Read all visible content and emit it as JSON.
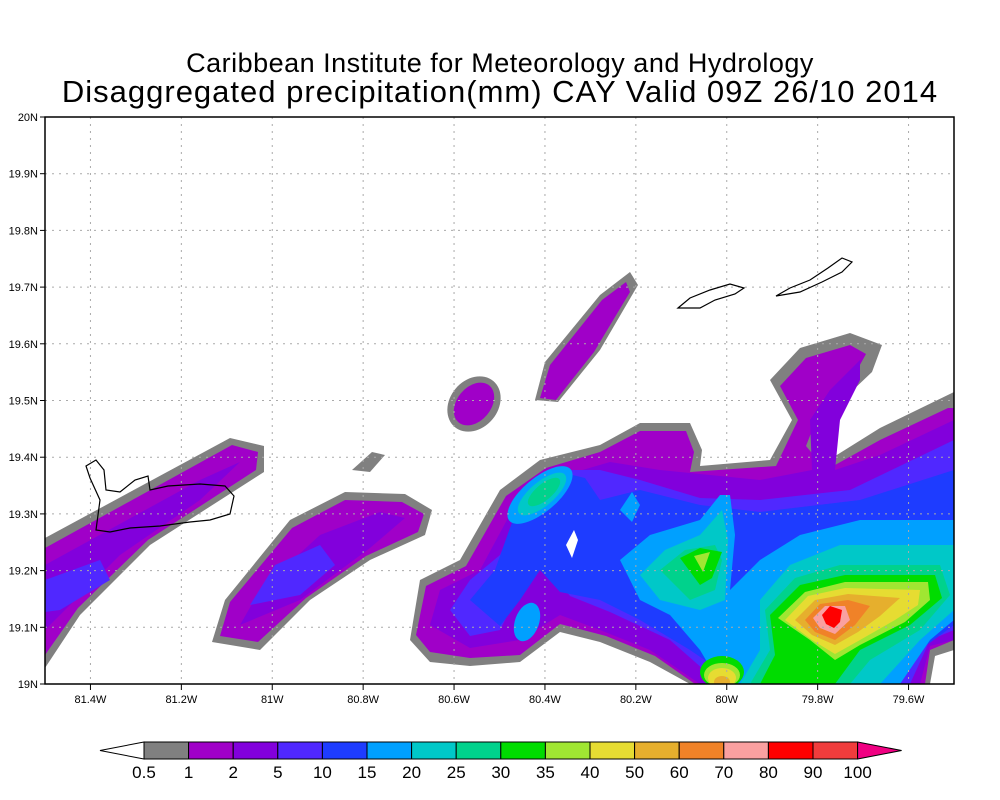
{
  "title": {
    "line1": "Caribbean Institute for Meteorology and Hydrology",
    "line2": "Disaggregated precipitation(mm) CAY Valid 09Z 26/10 2014"
  },
  "chart_data": {
    "type": "heatmap",
    "title": "Disaggregated precipitation(mm) CAY Valid 09Z 26/10 2014",
    "xlabel": "",
    "ylabel": "",
    "xlim": [
      -81.5,
      -79.5
    ],
    "ylim": [
      19.0,
      20.0
    ],
    "x_ticks": [
      "81.4W",
      "81.2W",
      "81W",
      "80.8W",
      "80.6W",
      "80.4W",
      "80.2W",
      "80W",
      "79.8W",
      "79.6W"
    ],
    "x_tick_values": [
      -81.4,
      -81.2,
      -81.0,
      -80.8,
      -80.6,
      -80.4,
      -80.2,
      -80.0,
      -79.8,
      -79.6
    ],
    "y_ticks": [
      "19N",
      "19.1N",
      "19.2N",
      "19.3N",
      "19.4N",
      "19.5N",
      "19.6N",
      "19.7N",
      "19.8N",
      "19.9N",
      "20N"
    ],
    "y_tick_values": [
      19.0,
      19.1,
      19.2,
      19.3,
      19.4,
      19.5,
      19.6,
      19.7,
      19.8,
      19.9,
      20.0
    ],
    "grid": true,
    "max_value_location": {
      "lon": -79.78,
      "lat": 19.12,
      "range": "80-90"
    },
    "colorbar": {
      "labels": [
        "0.5",
        "1",
        "2",
        "5",
        "10",
        "15",
        "20",
        "25",
        "30",
        "35",
        "40",
        "50",
        "60",
        "70",
        "80",
        "90",
        "100"
      ],
      "colors": [
        "#ffffff",
        "#808080",
        "#a000c8",
        "#8200dc",
        "#5028ff",
        "#1e3cff",
        "#00a0ff",
        "#00c8c8",
        "#00d28c",
        "#00dc00",
        "#a0e632",
        "#e6dc32",
        "#e6af2d",
        "#f08228",
        "#faa0a0",
        "#ff0000",
        "#f03c3c",
        "#f00082"
      ]
    }
  }
}
